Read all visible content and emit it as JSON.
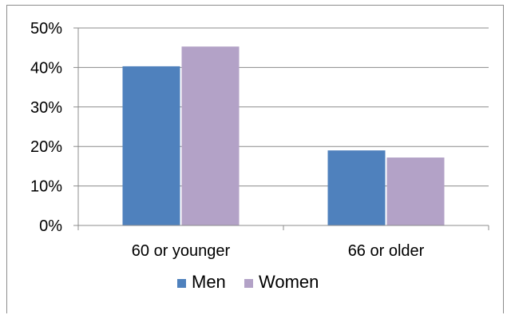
{
  "chart_data": {
    "type": "bar",
    "categories": [
      "60 or younger",
      "66 or older"
    ],
    "series": [
      {
        "name": "Men",
        "values": [
          40.3,
          19.0
        ],
        "color": "#4f81bd"
      },
      {
        "name": "Women",
        "values": [
          45.3,
          17.2
        ],
        "color": "#b3a2c7"
      }
    ],
    "ylim": [
      0,
      50
    ],
    "yticks": [
      0,
      10,
      20,
      30,
      40,
      50
    ],
    "ytick_format": "percent",
    "grid": true,
    "legend": "bottom",
    "title": "",
    "xlabel": "",
    "ylabel": ""
  }
}
